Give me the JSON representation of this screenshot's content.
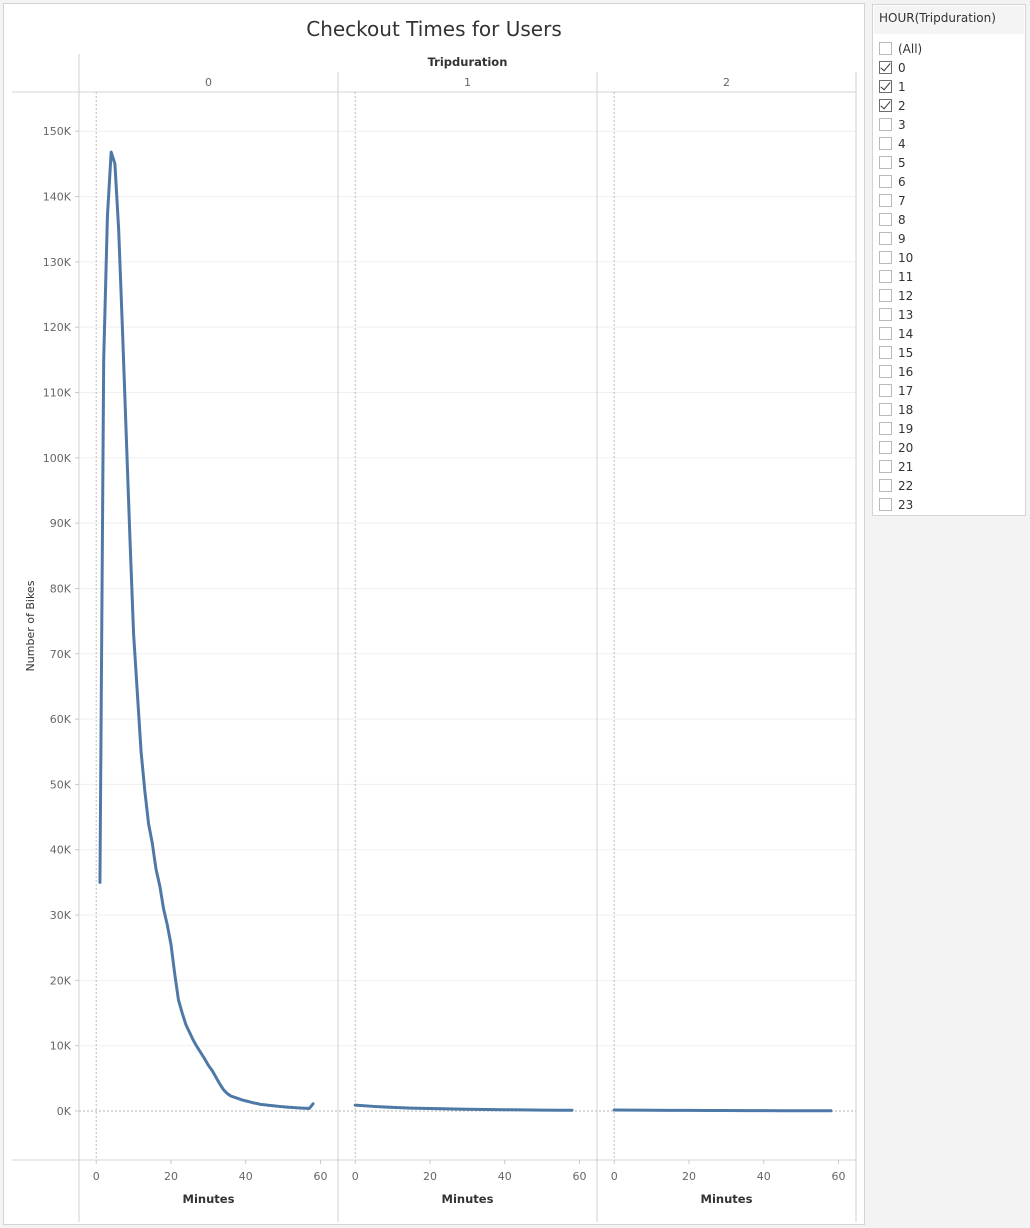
{
  "chart_data": {
    "type": "line",
    "title": "Checkout Times for Users",
    "column_header": "Tripduration",
    "ylabel": "Number of Bikes",
    "xlabel": "Minutes",
    "ylim": [
      -7500,
      156000
    ],
    "xlim": [
      -3,
      62
    ],
    "yticks": [
      0,
      10000,
      20000,
      30000,
      40000,
      50000,
      60000,
      70000,
      80000,
      90000,
      100000,
      110000,
      120000,
      130000,
      140000,
      150000
    ],
    "ytick_labels": [
      "0K",
      "10K",
      "20K",
      "30K",
      "40K",
      "50K",
      "60K",
      "70K",
      "80K",
      "90K",
      "100K",
      "110K",
      "120K",
      "130K",
      "140K",
      "150K"
    ],
    "xticks": [
      0,
      20,
      40,
      60
    ],
    "xtick_labels": [
      "0",
      "20",
      "40",
      "60"
    ],
    "line_color": "#4e79a7",
    "grid": true,
    "panels": [
      {
        "label": "0",
        "x": [
          1,
          2,
          3,
          4,
          5,
          6,
          7,
          8,
          9,
          10,
          11,
          12,
          13,
          14,
          15,
          16,
          17,
          18,
          19,
          20,
          21,
          22,
          23,
          24,
          25,
          26,
          27,
          28,
          29,
          30,
          31,
          32,
          33,
          34,
          35,
          36,
          37,
          38,
          39,
          40,
          41,
          42,
          43,
          44,
          45,
          46,
          47,
          48,
          49,
          50,
          51,
          52,
          53,
          54,
          55,
          56,
          57,
          58
        ],
        "y": [
          35000,
          115000,
          137000,
          146800,
          145000,
          135000,
          120000,
          104000,
          88000,
          73000,
          64000,
          55000,
          49000,
          44000,
          41000,
          37000,
          34500,
          31000,
          28500,
          25500,
          21000,
          17000,
          15000,
          13200,
          12000,
          10800,
          9800,
          8900,
          8000,
          7000,
          6200,
          5200,
          4200,
          3300,
          2700,
          2300,
          2100,
          1900,
          1700,
          1550,
          1400,
          1250,
          1150,
          1000,
          950,
          880,
          820,
          760,
          700,
          650,
          600,
          560,
          520,
          480,
          450,
          420,
          390,
          1100
        ]
      },
      {
        "label": "1",
        "x": [
          0,
          5,
          10,
          15,
          20,
          25,
          30,
          35,
          40,
          45,
          50,
          55,
          58
        ],
        "y": [
          900,
          700,
          550,
          450,
          380,
          320,
          270,
          230,
          200,
          170,
          140,
          120,
          110
        ]
      },
      {
        "label": "2",
        "x": [
          0,
          5,
          10,
          15,
          20,
          25,
          30,
          35,
          40,
          45,
          50,
          55,
          58
        ],
        "y": [
          150,
          130,
          115,
          100,
          90,
          80,
          70,
          62,
          55,
          48,
          42,
          36,
          32
        ]
      }
    ]
  },
  "filter": {
    "title": "HOUR(Tripduration)",
    "items": [
      {
        "label": "(All)",
        "checked": false
      },
      {
        "label": "0",
        "checked": true
      },
      {
        "label": "1",
        "checked": true
      },
      {
        "label": "2",
        "checked": true
      },
      {
        "label": "3",
        "checked": false
      },
      {
        "label": "4",
        "checked": false
      },
      {
        "label": "5",
        "checked": false
      },
      {
        "label": "6",
        "checked": false
      },
      {
        "label": "7",
        "checked": false
      },
      {
        "label": "8",
        "checked": false
      },
      {
        "label": "9",
        "checked": false
      },
      {
        "label": "10",
        "checked": false
      },
      {
        "label": "11",
        "checked": false
      },
      {
        "label": "12",
        "checked": false
      },
      {
        "label": "13",
        "checked": false
      },
      {
        "label": "14",
        "checked": false
      },
      {
        "label": "15",
        "checked": false
      },
      {
        "label": "16",
        "checked": false
      },
      {
        "label": "17",
        "checked": false
      },
      {
        "label": "18",
        "checked": false
      },
      {
        "label": "19",
        "checked": false
      },
      {
        "label": "20",
        "checked": false
      },
      {
        "label": "21",
        "checked": false
      },
      {
        "label": "22",
        "checked": false
      },
      {
        "label": "23",
        "checked": false
      }
    ]
  }
}
